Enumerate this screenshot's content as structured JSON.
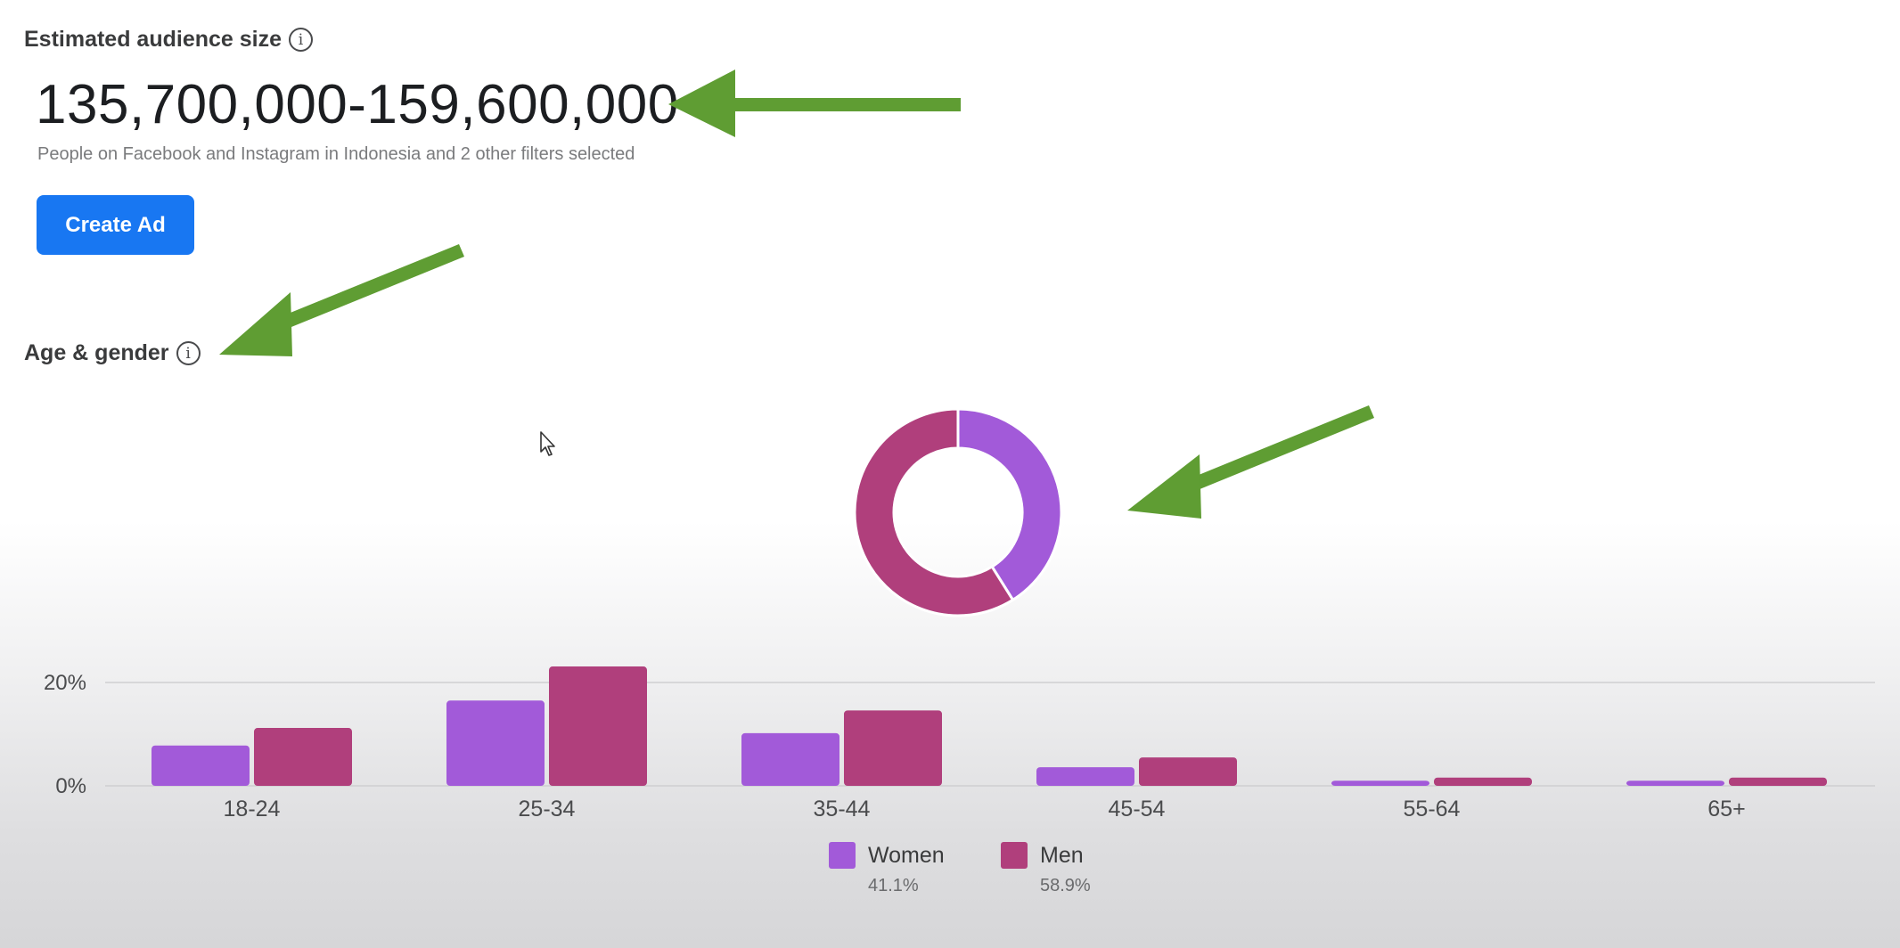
{
  "audience": {
    "label": "Estimated audience size",
    "value": "135,700,000-159,600,000",
    "description": "People on Facebook and Instagram in Indonesia and 2 other filters selected",
    "create_ad_label": "Create Ad"
  },
  "age_gender": {
    "label": "Age & gender"
  },
  "colors": {
    "women": "#a25ad9",
    "men": "#b03f7c",
    "arrow": "#5f9d33",
    "button": "#1877f2"
  },
  "chart_data": [
    {
      "type": "pie",
      "categories": [
        "Women",
        "Men"
      ],
      "values": [
        41.1,
        58.9
      ]
    },
    {
      "type": "bar",
      "categories": [
        "18-24",
        "25-34",
        "35-44",
        "45-54",
        "55-64",
        "65+"
      ],
      "series": [
        {
          "name": "Women",
          "values": [
            7.8,
            16.5,
            10.2,
            3.6,
            1.0,
            1.0
          ]
        },
        {
          "name": "Men",
          "values": [
            11.2,
            23.1,
            14.6,
            5.5,
            1.6,
            1.6
          ]
        }
      ],
      "y_ticks": [
        "20%",
        "0%"
      ],
      "ylim": [
        0,
        25
      ],
      "grid": true,
      "legend": [
        {
          "name": "Women",
          "percent": "41.1%"
        },
        {
          "name": "Men",
          "percent": "58.9%"
        }
      ]
    }
  ]
}
